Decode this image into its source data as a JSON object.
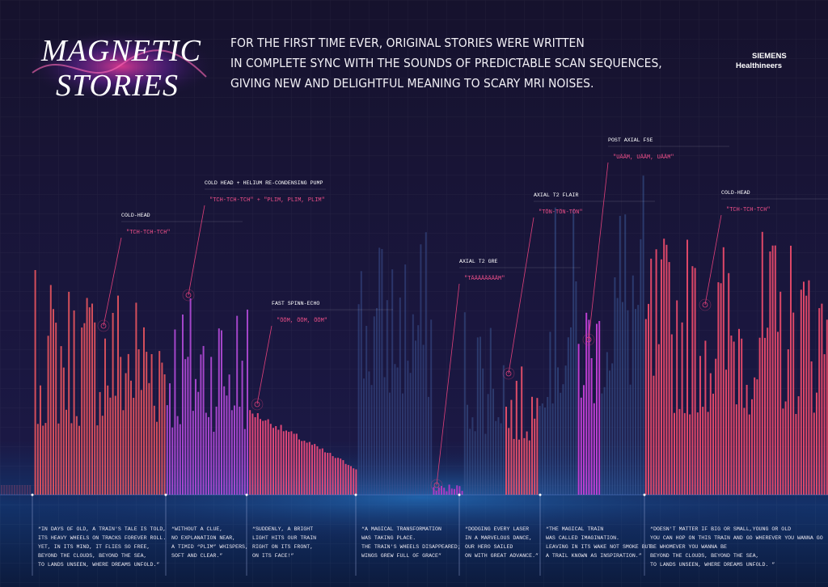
{
  "header": {
    "title": [
      "MAGNETIC",
      "STORIES"
    ],
    "intro": [
      "FOR THE FIRST TIME EVER, ORIGINAL STORIES WERE WRITTEN",
      "IN COMPLETE SYNC WITH THE SOUNDS OF PREDICTABLE SCAN SEQUENCES,",
      "GIVING NEW AND DELIGHTFUL MEANING TO SCARY MRI NOISES."
    ],
    "brand": [
      "SIEMENS",
      "Healthineers"
    ]
  },
  "annotations": [
    {
      "label": "COLD-HEAD",
      "sound": "\"TCH-TCH-TCH\""
    },
    {
      "label": "COLD HEAD + HELIUM RE-CONDENSING PUMP",
      "sound": "\"TCH-TCH-TCH\" + \"PLIM, PLIM, PLIM\""
    },
    {
      "label": "FAST SPINN-ECHO",
      "sound": "\"ÖÖM, ÖÖM, ÖÖM\""
    },
    {
      "label": "AXIAL T2 GRE",
      "sound": "\"TÄÄÄÄÄÄÄÄM\""
    },
    {
      "label": "AXIAL T2 FLAIR",
      "sound": "\"TÖN-TÖN-TÖN\""
    },
    {
      "label": "POST AXIAL FSE",
      "sound": "\"UÄÄM, UÄÄM, UÄÄM\""
    },
    {
      "label": "COLD-HEAD",
      "sound": "\"TCH-TCH-TCH\""
    }
  ],
  "stories": [
    [
      "“IN DAYS OF OLD, A TRAIN'S TALE IS TOLD,",
      "ITS HEAVY WHEELS ON TRACKS FOREVER ROLL.",
      "YET, IN ITS MIND, IT FLIES SO FREE,",
      "BEYOND THE CLOUDS, BEYOND THE SEA,",
      "TO LANDS UNSEEN, WHERE DREAMS UNFOLD.”"
    ],
    [
      "“WITHOUT A CLUE,",
      "NO EXPLANATION NEAR,",
      "A TIMID “PLIM” WHISPERS,",
      "SOFT AND CLEAR.”"
    ],
    [
      "“SUDDENLY, A BRIGHT",
      "LIGHT HITS OUR TRAIN",
      "RIGHT ON ITS FRONT,",
      "ON ITS FACE!”"
    ],
    [
      "“A MAGICAL TRANSFORMATION",
      "WAS TAKING PLACE.",
      "THE TRAIN'S WHEELS DISAPPEARED;",
      "WINGS GREW FULL OF GRACE”"
    ],
    [
      "“DODGING EVERY LASER",
      "IN A MARVELOUS DANCE,",
      "OUR HERO SAILED",
      "ON WITH GREAT ADVANCE.”"
    ],
    [
      "“THE MAGICAL TRAIN",
      "WAS CALLED IMAGINATION.",
      "LEAVING IN ITS WAKE NOT SMOKE BUT",
      "A TRAIL KNOWN AS INSPIRATION.”"
    ],
    [
      "“DOESN'T MATTER IF BIG OR SMALL,YOUNG OR OLD",
      "YOU CAN HOP ON THIS TRAIN AND GO WHEREVER YOU WANNA GO",
      "BE WHOMEVER YOU WANNA BE",
      "BEYOND THE CLOUDS, BEYOND THE SEA,",
      "TO LANDS UNSEEN, WHERE DREAMS UNFOLD. ”"
    ]
  ]
}
